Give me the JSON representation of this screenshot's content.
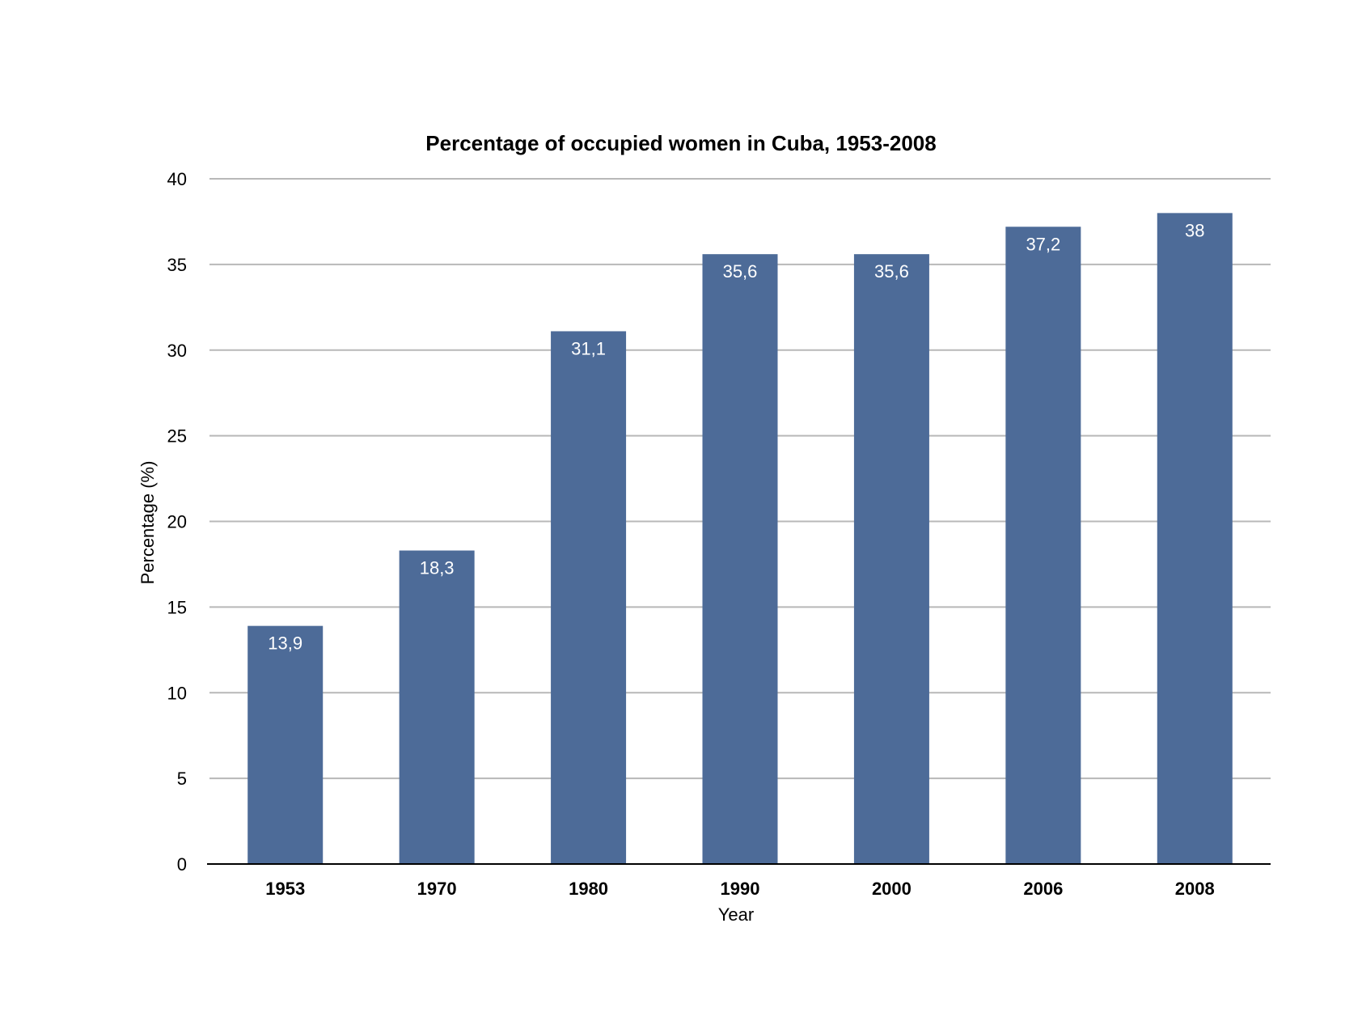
{
  "chart_data": {
    "type": "bar",
    "title": "Percentage of occupied women in Cuba, 1953-2008",
    "xlabel": "Year",
    "ylabel": "Percentage (%)",
    "categories": [
      "1953",
      "1970",
      "1980",
      "1990",
      "2000",
      "2006",
      "2008"
    ],
    "values": [
      13.9,
      18.3,
      31.1,
      35.6,
      35.6,
      37.2,
      38
    ],
    "value_labels": [
      "13,9",
      "18,3",
      "31,1",
      "35,6",
      "35,6",
      "37,2",
      "38"
    ],
    "ylim": [
      0,
      40
    ],
    "yticks": [
      "0",
      "5",
      "10",
      "15",
      "20",
      "25",
      "30",
      "35",
      "40"
    ],
    "grid": true,
    "legend": "none",
    "colors": {
      "bar": "#4d6b98",
      "grid": "#b8b8b8",
      "axis": "#000000",
      "bar_label": "#ffffff"
    }
  }
}
